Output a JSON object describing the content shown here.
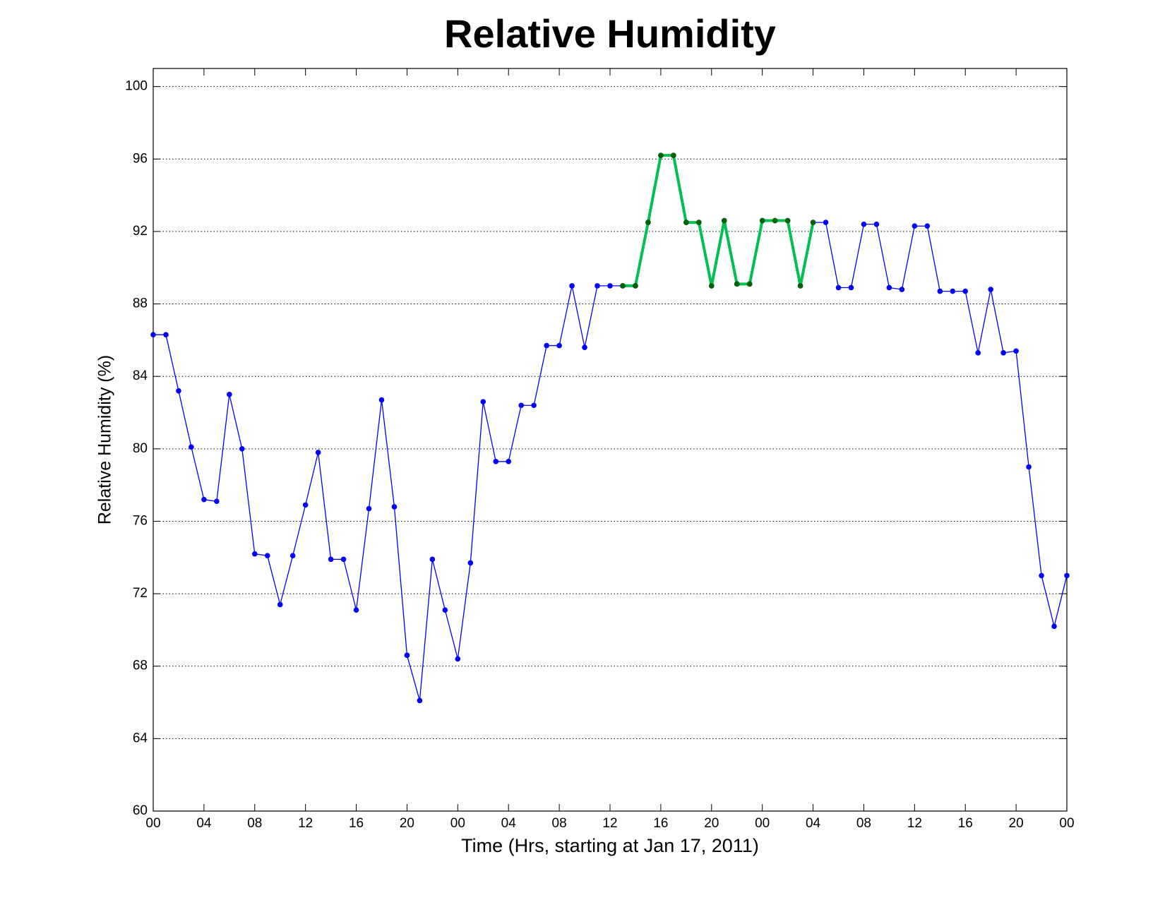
{
  "chart_data": {
    "type": "line",
    "title": "Relative Humidity",
    "xlabel": "Time (Hrs, starting at Jan 17, 2011)",
    "ylabel": "Relative Humidity (%)",
    "x": [
      0,
      1,
      2,
      3,
      4,
      5,
      6,
      7,
      8,
      9,
      10,
      11,
      12,
      13,
      14,
      15,
      16,
      17,
      18,
      19,
      20,
      21,
      22,
      23,
      24,
      25,
      26,
      27,
      28,
      29,
      30,
      31,
      32,
      33,
      34,
      35,
      36,
      37,
      38,
      39,
      40,
      41,
      42,
      43,
      44,
      45,
      46,
      47,
      48,
      49,
      50,
      51,
      52,
      53,
      54,
      55,
      56,
      57,
      58,
      59,
      60,
      61,
      62,
      63,
      64,
      65,
      66,
      67,
      68,
      69,
      70,
      71,
      72
    ],
    "series": [
      {
        "color": "#0000ff",
        "marker_color": "#0000ff",
        "line_width": 1.3,
        "values": [
          86.3,
          86.3,
          83.2,
          80.1,
          77.2,
          77.1,
          83.0,
          80.0,
          74.2,
          74.1,
          71.4,
          74.1,
          76.9,
          79.8,
          73.9,
          73.9,
          71.1,
          76.7,
          82.7,
          76.8,
          68.6,
          66.1,
          73.9,
          71.1,
          68.4,
          73.7,
          82.6,
          79.3,
          79.3,
          82.4,
          82.4,
          85.7,
          85.7,
          89.0,
          85.6,
          89.0,
          89.0,
          89.0,
          89.0,
          92.5,
          96.2,
          96.2,
          92.5,
          92.5,
          89.0,
          92.6,
          89.1,
          89.1,
          92.6,
          92.6,
          92.6,
          89.0,
          92.5,
          92.5,
          88.9,
          88.9,
          92.4,
          92.4,
          88.9,
          88.8,
          92.3,
          92.3,
          88.7,
          88.7,
          88.7,
          85.3,
          88.8,
          85.3,
          85.4,
          79.0,
          73.0,
          70.2,
          73.0
        ]
      },
      {
        "color": "#00c050",
        "marker_color": "#006400",
        "line_width": 4,
        "values": [
          null,
          null,
          null,
          null,
          null,
          null,
          null,
          null,
          null,
          null,
          null,
          null,
          null,
          null,
          null,
          null,
          null,
          null,
          null,
          null,
          null,
          null,
          null,
          null,
          null,
          null,
          null,
          null,
          null,
          null,
          null,
          null,
          null,
          null,
          null,
          null,
          null,
          89.0,
          89.0,
          92.5,
          96.2,
          96.2,
          92.5,
          92.5,
          89.0,
          92.6,
          89.1,
          89.1,
          92.6,
          92.6,
          92.6,
          89.0,
          92.5,
          null,
          null,
          null,
          null,
          null,
          null,
          null,
          null,
          null,
          null,
          null,
          null,
          null,
          null,
          null,
          null,
          null,
          null,
          null,
          null
        ]
      }
    ],
    "xlim": [
      0,
      72
    ],
    "ylim": [
      60,
      101
    ],
    "xticks": [
      {
        "value": 0,
        "label": "00"
      },
      {
        "value": 4,
        "label": "04"
      },
      {
        "value": 8,
        "label": "08"
      },
      {
        "value": 12,
        "label": "12"
      },
      {
        "value": 16,
        "label": "16"
      },
      {
        "value": 20,
        "label": "20"
      },
      {
        "value": 24,
        "label": "00"
      },
      {
        "value": 28,
        "label": "04"
      },
      {
        "value": 32,
        "label": "08"
      },
      {
        "value": 36,
        "label": "12"
      },
      {
        "value": 40,
        "label": "16"
      },
      {
        "value": 44,
        "label": "20"
      },
      {
        "value": 48,
        "label": "00"
      },
      {
        "value": 52,
        "label": "04"
      },
      {
        "value": 56,
        "label": "08"
      },
      {
        "value": 60,
        "label": "12"
      },
      {
        "value": 64,
        "label": "16"
      },
      {
        "value": 68,
        "label": "20"
      },
      {
        "value": 72,
        "label": "00"
      }
    ],
    "yticks": [
      60,
      64,
      68,
      72,
      76,
      80,
      84,
      88,
      92,
      96,
      100
    ],
    "grid": true
  }
}
